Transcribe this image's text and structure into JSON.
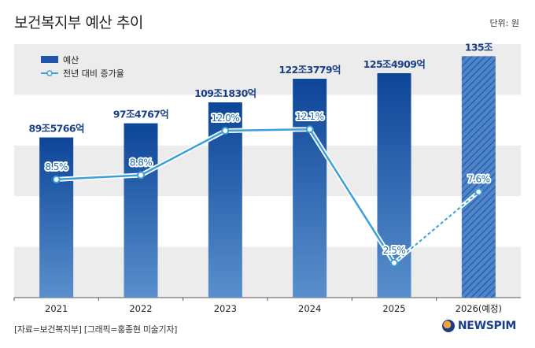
{
  "title": "보건복지부 예산 추이",
  "unit": "단위: 원",
  "source": "[자료=보건복지부] [그래픽=홍종현 미술기자]",
  "brand": {
    "name": "NEWSPIM"
  },
  "chart_data": {
    "type": "bar",
    "categories": [
      "2021",
      "2022",
      "2023",
      "2024",
      "2025",
      "2026(예정)"
    ],
    "series": [
      {
        "name": "예산",
        "kind": "bar",
        "values": [
          89.5766,
          97.4767,
          109.183,
          122.3779,
          125.4909,
          135
        ],
        "labels": [
          "89조5766억",
          "97조4767억",
          "109조1830억",
          "122조3779억",
          "125조4909억",
          "135조"
        ],
        "color": "#1f56a8",
        "projected_last": true
      },
      {
        "name": "전년 대비 증가율",
        "kind": "line",
        "values": [
          8.5,
          8.8,
          12.0,
          12.1,
          2.5,
          7.6
        ],
        "labels": [
          "8.5%",
          "8.8%",
          "12.0%",
          "12.1%",
          "2.5%",
          "7.6%"
        ],
        "color": "#3aa0d8",
        "dashed_last_segment": true
      }
    ],
    "legend": {
      "position": "top-left",
      "entries": [
        "예산",
        "전년 대비 증가율"
      ]
    },
    "bar_ylim": [
      0,
      140
    ],
    "line_ylim": [
      0,
      18
    ],
    "grid": "alternating bands"
  }
}
